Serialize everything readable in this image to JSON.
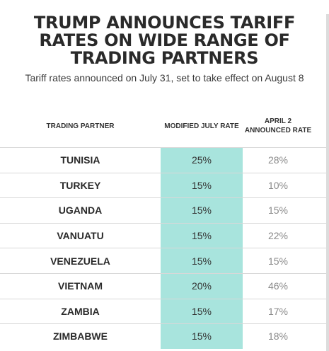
{
  "chart_data": {
    "type": "table",
    "title": "TRUMP ANNOUNCES TARIFF RATES ON WIDE RANGE OF TRADING PARTNERS",
    "subtitle": "Tariff rates announced on July 31, set to take effect on August 8",
    "columns": [
      "TRADING PARTNER",
      "MODIFIED JULY RATE",
      "APRIL 2 ANNOUNCED RATE"
    ],
    "rows": [
      {
        "partner": "TUNISIA",
        "july": "25%",
        "april": "28%"
      },
      {
        "partner": "TURKEY",
        "july": "15%",
        "april": "10%"
      },
      {
        "partner": "UGANDA",
        "july": "15%",
        "april": "15%"
      },
      {
        "partner": "VANUATU",
        "july": "15%",
        "april": "22%"
      },
      {
        "partner": "VENEZUELA",
        "july": "15%",
        "april": "15%"
      },
      {
        "partner": "VIETNAM",
        "july": "20%",
        "april": "46%"
      },
      {
        "partner": "ZAMBIA",
        "july": "15%",
        "april": "17%"
      },
      {
        "partner": "ZIMBABWE",
        "july": "15%",
        "april": "18%"
      }
    ],
    "highlight_color": "#a8e4dd",
    "grid": true
  }
}
